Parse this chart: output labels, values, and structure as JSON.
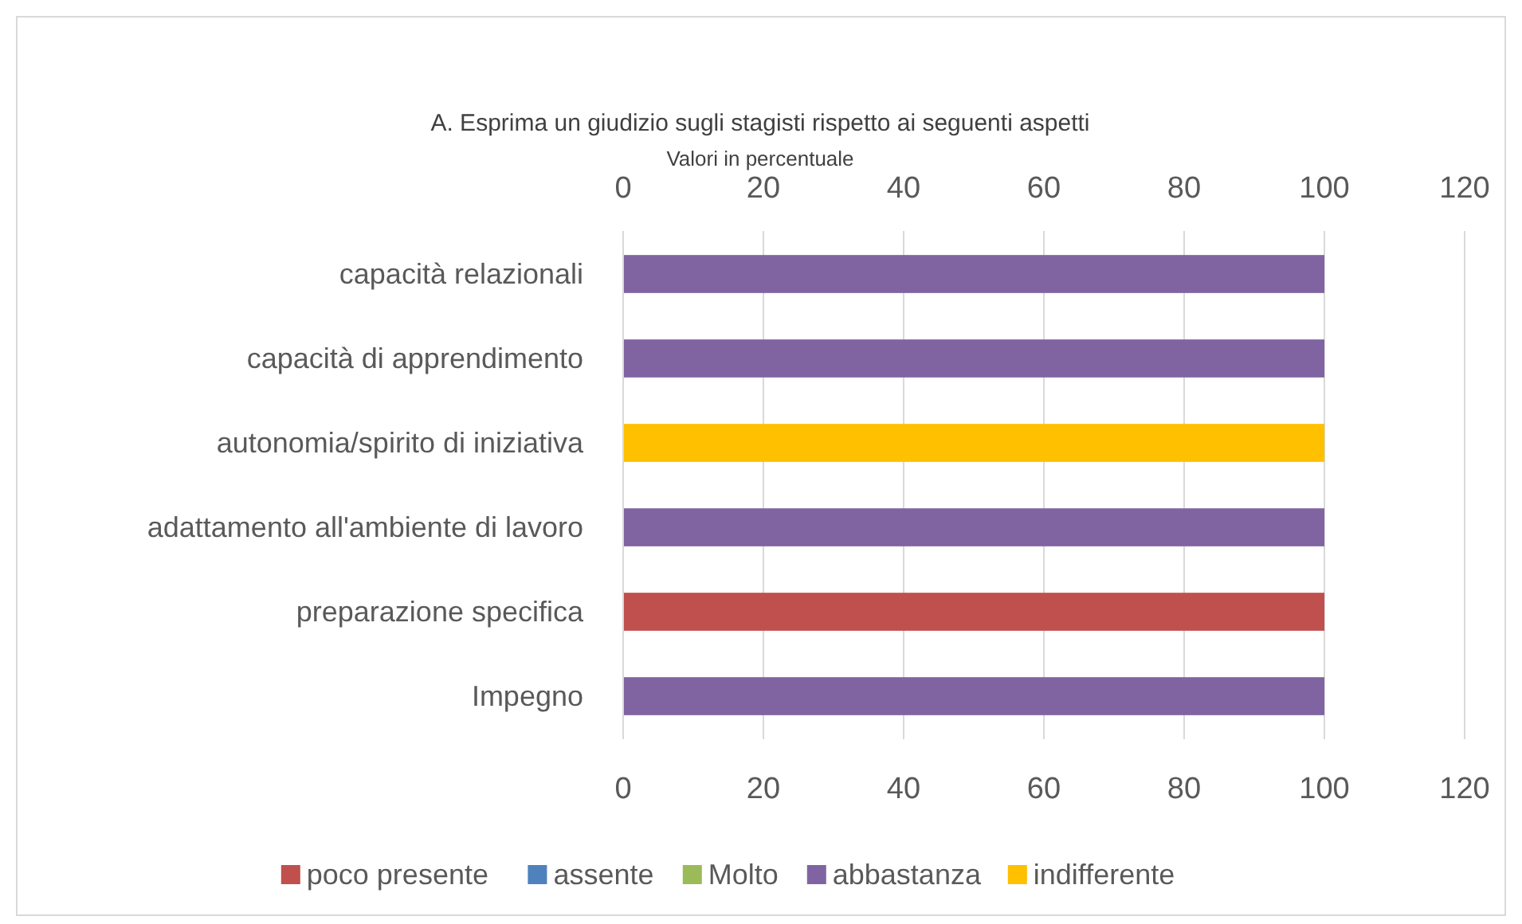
{
  "chart_data": {
    "type": "bar",
    "orientation": "horizontal",
    "stacked": true,
    "title": "A. Esprima un giudizio sugli stagisti rispetto ai seguenti aspetti",
    "subtitle": "Valori in percentuale",
    "categories": [
      "capacità relazionali",
      "capacità di apprendimento",
      "autonomia/spirito di iniziativa",
      "adattamento all'ambiente di lavoro",
      "preparazione specifica",
      "Impegno"
    ],
    "series": [
      {
        "name": "poco presente",
        "color": "#c0504d",
        "values": [
          null,
          null,
          null,
          null,
          100,
          null
        ]
      },
      {
        "name": "assente",
        "color": "#4f81bd",
        "values": [
          null,
          null,
          null,
          null,
          null,
          null
        ]
      },
      {
        "name": "Molto",
        "color": "#9bbb59",
        "values": [
          null,
          null,
          null,
          null,
          null,
          null
        ]
      },
      {
        "name": "abbastanza",
        "color": "#8064a2",
        "values": [
          100,
          100,
          null,
          100,
          null,
          100
        ]
      },
      {
        "name": "indifferente",
        "color": "#ffc000",
        "values": [
          null,
          null,
          100,
          null,
          null,
          null
        ]
      }
    ],
    "xlim": [
      0,
      120
    ],
    "xticks": [
      0,
      20,
      40,
      60,
      80,
      100,
      120
    ],
    "x2lim": [
      0,
      120
    ],
    "x2ticks": [
      0,
      20,
      40,
      60,
      80,
      100,
      120
    ],
    "grid": "x",
    "legend": "bottom"
  }
}
